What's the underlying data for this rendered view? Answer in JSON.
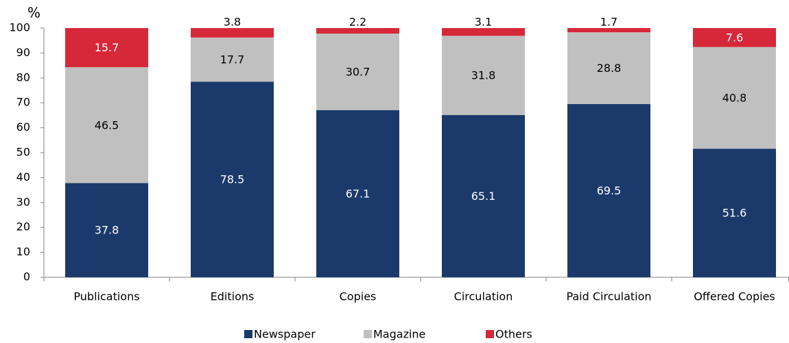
{
  "chart_data": {
    "type": "stacked_bar",
    "y_label": "%",
    "categories": [
      "Publications",
      "Editions",
      "Copies",
      "Circulation",
      "Paid Circulation",
      "Offered Copies"
    ],
    "series": [
      {
        "name": "Newspaper",
        "color": "#1b3a6b",
        "values": [
          37.8,
          78.5,
          67.1,
          65.1,
          69.5,
          51.6
        ]
      },
      {
        "name": "Magazine",
        "color": "#c0c0c0",
        "values": [
          46.5,
          17.7,
          30.7,
          31.8,
          28.8,
          40.8
        ]
      },
      {
        "name": "Others",
        "color": "#d62839",
        "values": [
          15.7,
          3.8,
          2.2,
          3.1,
          1.7,
          7.6
        ]
      }
    ],
    "ylim": [
      0,
      100
    ],
    "yticks": [
      0,
      10,
      20,
      30,
      40,
      50,
      60,
      70,
      80,
      90,
      100
    ],
    "grid": false,
    "legend": "bottom"
  }
}
